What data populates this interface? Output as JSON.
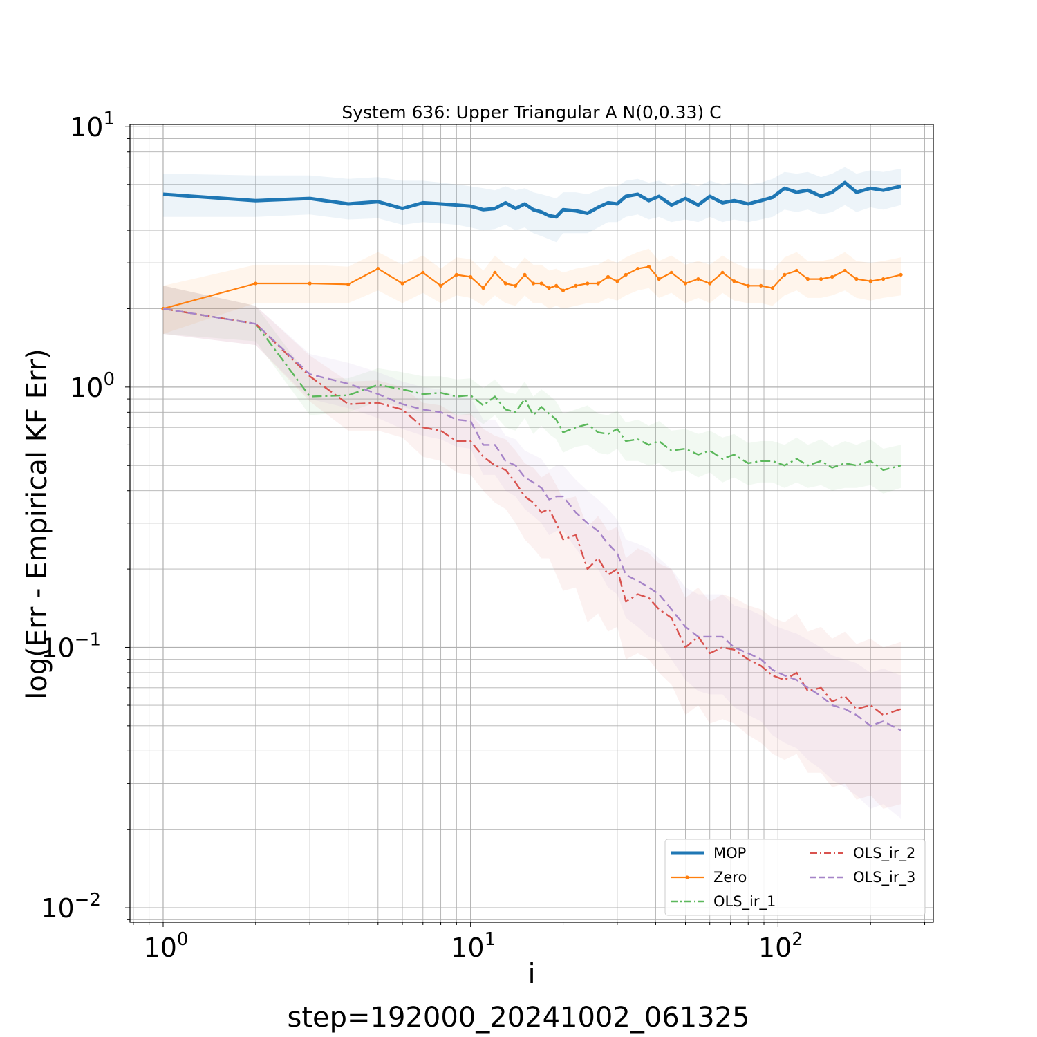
{
  "chart_data": {
    "type": "line",
    "title": "System 636: Upper Triangular A N(0,0.33) C",
    "xlabel": "i",
    "ylabel": "log(Err - Empirical KF Err)",
    "footer": "step=192000_20241002_061325",
    "x_scale": "log",
    "y_scale": "log",
    "xlim": [
      0.78,
      320
    ],
    "ylim": [
      0.0088,
      10.2
    ],
    "x_ticks": [
      {
        "base": "10",
        "exp": "0"
      },
      {
        "base": "10",
        "exp": "1"
      },
      {
        "base": "10",
        "exp": "2"
      }
    ],
    "y_ticks": [
      {
        "base": "10",
        "exp": "1"
      },
      {
        "base": "10",
        "exp": "0"
      },
      {
        "base": "10",
        "exp": "−1"
      },
      {
        "base": "10",
        "exp": "−2"
      }
    ],
    "grid": true,
    "legend_position": "lower-right",
    "legend": [
      {
        "name": "MOP",
        "color": "#1f77b4",
        "style": "solid-thick"
      },
      {
        "name": "Zero",
        "color": "#ff7f0e",
        "style": "solid-marker"
      },
      {
        "name": "OLS_ir_1",
        "color": "#5cb85c",
        "style": "dashdot"
      },
      {
        "name": "OLS_ir_2",
        "color": "#d9534f",
        "style": "dashdot"
      },
      {
        "name": "OLS_ir_3",
        "color": "#a684c8",
        "style": "dashed"
      }
    ],
    "series": [
      {
        "name": "MOP",
        "color": "#1f77b4",
        "x": [
          1,
          2,
          3,
          4,
          5,
          6,
          7,
          8,
          9,
          10,
          11,
          12,
          13,
          14,
          15,
          16,
          17,
          18,
          19,
          20,
          22,
          24,
          26,
          28,
          30,
          32,
          35,
          38,
          41,
          45,
          50,
          55,
          60,
          66,
          72,
          80,
          88,
          96,
          105,
          115,
          125,
          138,
          150,
          165,
          180,
          200,
          220,
          251
        ],
        "y": [
          5.5,
          5.2,
          5.3,
          5.05,
          5.15,
          4.85,
          5.1,
          5.05,
          5.0,
          4.95,
          4.8,
          4.85,
          5.1,
          4.85,
          5.05,
          4.8,
          4.7,
          4.55,
          4.5,
          4.8,
          4.75,
          4.65,
          4.9,
          5.1,
          5.05,
          5.4,
          5.5,
          5.2,
          5.4,
          5.0,
          5.3,
          5.0,
          5.4,
          5.1,
          5.2,
          5.05,
          5.2,
          5.35,
          5.8,
          5.6,
          5.7,
          5.4,
          5.6,
          6.1,
          5.6,
          5.8,
          5.7,
          5.9
        ],
        "lower": [
          4.5,
          4.5,
          4.6,
          4.4,
          4.45,
          4.2,
          4.3,
          4.25,
          4.2,
          4.1,
          4.0,
          4.05,
          4.2,
          4.0,
          4.1,
          3.9,
          3.8,
          3.7,
          3.6,
          3.9,
          3.9,
          3.9,
          4.1,
          4.3,
          4.3,
          4.5,
          4.6,
          4.4,
          4.5,
          4.3,
          4.4,
          4.3,
          4.5,
          4.3,
          4.4,
          4.3,
          4.4,
          4.5,
          4.8,
          4.7,
          4.8,
          4.6,
          4.7,
          5.0,
          4.7,
          4.9,
          4.8,
          5.0
        ],
        "upper": [
          6.6,
          6.5,
          6.5,
          6.3,
          6.4,
          6.2,
          6.2,
          6.1,
          6.0,
          5.9,
          5.8,
          5.7,
          5.9,
          5.7,
          5.8,
          5.6,
          5.5,
          5.4,
          5.3,
          5.6,
          5.6,
          5.5,
          5.7,
          5.9,
          5.9,
          6.2,
          6.3,
          6.1,
          6.2,
          5.9,
          6.1,
          5.9,
          6.2,
          6.0,
          6.1,
          6.0,
          6.1,
          6.3,
          6.7,
          6.6,
          6.7,
          6.4,
          6.6,
          7.0,
          6.6,
          6.8,
          6.7,
          6.9
        ]
      },
      {
        "name": "Zero",
        "color": "#ff7f0e",
        "x": [
          1,
          2,
          3,
          4,
          5,
          6,
          7,
          8,
          9,
          10,
          11,
          12,
          13,
          14,
          15,
          16,
          17,
          18,
          19,
          20,
          22,
          24,
          26,
          28,
          30,
          32,
          35,
          38,
          41,
          45,
          50,
          55,
          60,
          66,
          72,
          80,
          88,
          96,
          105,
          115,
          125,
          138,
          150,
          165,
          180,
          200,
          220,
          251
        ],
        "y": [
          2.0,
          2.5,
          2.5,
          2.48,
          2.85,
          2.5,
          2.75,
          2.45,
          2.7,
          2.65,
          2.4,
          2.75,
          2.5,
          2.45,
          2.7,
          2.5,
          2.5,
          2.4,
          2.45,
          2.35,
          2.45,
          2.5,
          2.5,
          2.65,
          2.55,
          2.7,
          2.85,
          2.9,
          2.6,
          2.75,
          2.5,
          2.6,
          2.5,
          2.75,
          2.55,
          2.45,
          2.45,
          2.4,
          2.7,
          2.8,
          2.6,
          2.6,
          2.65,
          2.8,
          2.6,
          2.55,
          2.6,
          2.7
        ],
        "lower": [
          1.6,
          2.1,
          2.1,
          2.1,
          2.35,
          2.1,
          2.3,
          2.1,
          2.25,
          2.2,
          2.05,
          2.25,
          2.1,
          2.05,
          2.25,
          2.1,
          2.1,
          2.0,
          2.05,
          2.0,
          2.05,
          2.1,
          2.1,
          2.2,
          2.15,
          2.25,
          2.35,
          2.4,
          2.2,
          2.3,
          2.1,
          2.2,
          2.1,
          2.3,
          2.15,
          2.1,
          2.1,
          2.05,
          2.25,
          2.35,
          2.2,
          2.2,
          2.25,
          2.35,
          2.2,
          2.15,
          2.2,
          2.25
        ],
        "upper": [
          2.45,
          2.95,
          2.95,
          2.9,
          3.3,
          2.95,
          3.2,
          2.85,
          3.15,
          3.1,
          2.8,
          3.2,
          2.95,
          2.85,
          3.15,
          2.95,
          2.95,
          2.8,
          2.85,
          2.75,
          2.85,
          2.9,
          2.95,
          3.1,
          3.0,
          3.15,
          3.3,
          3.4,
          3.05,
          3.2,
          2.95,
          3.05,
          2.95,
          3.2,
          3.0,
          2.85,
          2.85,
          2.8,
          3.15,
          3.3,
          3.05,
          3.05,
          3.1,
          3.3,
          3.05,
          3.0,
          3.05,
          3.15
        ]
      },
      {
        "name": "OLS_ir_1",
        "color": "#5cb85c",
        "x": [
          1,
          2,
          3,
          4,
          5,
          6,
          7,
          8,
          9,
          10,
          11,
          12,
          13,
          14,
          15,
          16,
          17,
          18,
          19,
          20,
          22,
          24,
          26,
          28,
          30,
          32,
          35,
          38,
          41,
          45,
          50,
          55,
          60,
          66,
          72,
          80,
          88,
          96,
          105,
          115,
          125,
          138,
          150,
          165,
          180,
          200,
          220,
          251
        ],
        "y": [
          2.0,
          1.75,
          0.92,
          0.93,
          1.02,
          0.98,
          0.94,
          0.95,
          0.92,
          0.93,
          0.85,
          0.92,
          0.82,
          0.8,
          0.9,
          0.78,
          0.84,
          0.79,
          0.75,
          0.67,
          0.7,
          0.72,
          0.67,
          0.66,
          0.69,
          0.62,
          0.63,
          0.6,
          0.62,
          0.57,
          0.58,
          0.55,
          0.57,
          0.53,
          0.55,
          0.51,
          0.52,
          0.52,
          0.5,
          0.53,
          0.5,
          0.52,
          0.49,
          0.51,
          0.5,
          0.52,
          0.48,
          0.5
        ],
        "lower": [
          1.6,
          1.5,
          0.78,
          0.8,
          0.88,
          0.84,
          0.8,
          0.81,
          0.78,
          0.78,
          0.72,
          0.78,
          0.7,
          0.68,
          0.76,
          0.66,
          0.71,
          0.66,
          0.63,
          0.56,
          0.59,
          0.6,
          0.56,
          0.55,
          0.58,
          0.52,
          0.52,
          0.5,
          0.51,
          0.47,
          0.48,
          0.45,
          0.47,
          0.43,
          0.45,
          0.42,
          0.43,
          0.43,
          0.41,
          0.43,
          0.41,
          0.42,
          0.4,
          0.41,
          0.41,
          0.42,
          0.39,
          0.41
        ],
        "upper": [
          2.45,
          2.05,
          1.08,
          1.08,
          1.18,
          1.14,
          1.1,
          1.1,
          1.07,
          1.08,
          0.99,
          1.07,
          0.96,
          0.94,
          1.05,
          0.92,
          0.98,
          0.93,
          0.88,
          0.79,
          0.82,
          0.85,
          0.79,
          0.78,
          0.81,
          0.73,
          0.75,
          0.71,
          0.74,
          0.68,
          0.69,
          0.66,
          0.68,
          0.64,
          0.66,
          0.61,
          0.62,
          0.62,
          0.6,
          0.64,
          0.6,
          0.63,
          0.59,
          0.62,
          0.6,
          0.63,
          0.58,
          0.6
        ]
      },
      {
        "name": "OLS_ir_2",
        "color": "#d9534f",
        "x": [
          1,
          2,
          3,
          4,
          5,
          6,
          7,
          8,
          9,
          10,
          11,
          12,
          13,
          14,
          15,
          16,
          17,
          18,
          19,
          20,
          22,
          24,
          26,
          28,
          30,
          32,
          35,
          38,
          41,
          45,
          50,
          55,
          60,
          66,
          72,
          80,
          88,
          96,
          105,
          115,
          125,
          138,
          150,
          165,
          180,
          200,
          220,
          251
        ],
        "y": [
          2.0,
          1.75,
          1.1,
          0.86,
          0.87,
          0.82,
          0.7,
          0.68,
          0.62,
          0.62,
          0.54,
          0.5,
          0.48,
          0.43,
          0.38,
          0.36,
          0.33,
          0.34,
          0.3,
          0.26,
          0.27,
          0.2,
          0.22,
          0.19,
          0.2,
          0.15,
          0.16,
          0.155,
          0.14,
          0.13,
          0.1,
          0.11,
          0.095,
          0.1,
          0.098,
          0.09,
          0.085,
          0.078,
          0.075,
          0.08,
          0.068,
          0.07,
          0.062,
          0.065,
          0.058,
          0.06,
          0.055,
          0.058
        ],
        "lower": [
          1.6,
          1.45,
          0.88,
          0.68,
          0.68,
          0.64,
          0.54,
          0.52,
          0.47,
          0.46,
          0.4,
          0.36,
          0.34,
          0.3,
          0.26,
          0.24,
          0.22,
          0.22,
          0.19,
          0.165,
          0.17,
          0.125,
          0.135,
          0.115,
          0.12,
          0.09,
          0.095,
          0.09,
          0.08,
          0.072,
          0.055,
          0.06,
          0.051,
          0.053,
          0.051,
          0.046,
          0.043,
          0.039,
          0.037,
          0.039,
          0.033,
          0.033,
          0.029,
          0.03,
          0.026,
          0.027,
          0.024,
          0.025
        ],
        "upper": [
          2.45,
          2.05,
          1.32,
          1.05,
          1.06,
          1.0,
          0.87,
          0.85,
          0.78,
          0.79,
          0.69,
          0.65,
          0.63,
          0.57,
          0.51,
          0.49,
          0.45,
          0.47,
          0.42,
          0.37,
          0.38,
          0.29,
          0.32,
          0.28,
          0.29,
          0.22,
          0.24,
          0.23,
          0.21,
          0.2,
          0.155,
          0.17,
          0.15,
          0.16,
          0.155,
          0.145,
          0.14,
          0.13,
          0.125,
          0.135,
          0.115,
          0.12,
          0.108,
          0.115,
          0.103,
          0.108,
          0.1,
          0.105
        ]
      },
      {
        "name": "OLS_ir_3",
        "color": "#a684c8",
        "x": [
          1,
          2,
          3,
          4,
          5,
          6,
          7,
          8,
          9,
          10,
          11,
          12,
          13,
          14,
          15,
          16,
          17,
          18,
          19,
          20,
          22,
          24,
          26,
          28,
          30,
          32,
          35,
          38,
          41,
          45,
          50,
          55,
          60,
          66,
          72,
          80,
          88,
          96,
          105,
          115,
          125,
          138,
          150,
          165,
          180,
          200,
          220,
          251
        ],
        "y": [
          2.0,
          1.75,
          1.12,
          1.03,
          0.94,
          0.86,
          0.82,
          0.8,
          0.75,
          0.74,
          0.6,
          0.6,
          0.52,
          0.5,
          0.45,
          0.43,
          0.41,
          0.37,
          0.38,
          0.38,
          0.33,
          0.3,
          0.28,
          0.25,
          0.23,
          0.19,
          0.18,
          0.17,
          0.16,
          0.14,
          0.12,
          0.11,
          0.11,
          0.11,
          0.1,
          0.095,
          0.09,
          0.082,
          0.078,
          0.075,
          0.07,
          0.065,
          0.06,
          0.058,
          0.055,
          0.05,
          0.052,
          0.048
        ],
        "lower": [
          1.6,
          1.45,
          0.9,
          0.83,
          0.76,
          0.69,
          0.65,
          0.63,
          0.59,
          0.58,
          0.46,
          0.46,
          0.4,
          0.38,
          0.34,
          0.32,
          0.3,
          0.27,
          0.28,
          0.28,
          0.24,
          0.21,
          0.2,
          0.17,
          0.16,
          0.13,
          0.12,
          0.11,
          0.105,
          0.09,
          0.075,
          0.068,
          0.066,
          0.066,
          0.059,
          0.055,
          0.052,
          0.046,
          0.043,
          0.041,
          0.037,
          0.034,
          0.031,
          0.029,
          0.027,
          0.024,
          0.025,
          0.022
        ],
        "upper": [
          2.45,
          2.05,
          1.34,
          1.24,
          1.14,
          1.05,
          1.0,
          0.98,
          0.92,
          0.91,
          0.75,
          0.75,
          0.65,
          0.63,
          0.57,
          0.55,
          0.53,
          0.48,
          0.5,
          0.5,
          0.44,
          0.4,
          0.37,
          0.34,
          0.31,
          0.26,
          0.25,
          0.24,
          0.22,
          0.2,
          0.17,
          0.16,
          0.16,
          0.16,
          0.145,
          0.14,
          0.133,
          0.122,
          0.117,
          0.113,
          0.107,
          0.1,
          0.093,
          0.09,
          0.087,
          0.08,
          0.083,
          0.078
        ]
      }
    ]
  }
}
